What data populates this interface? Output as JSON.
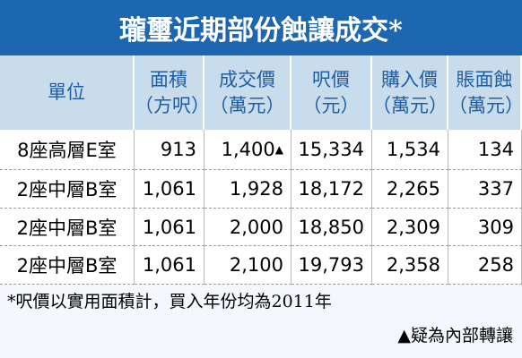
{
  "header": {
    "title": "瓏璽近期部份蝕讓成交*"
  },
  "table": {
    "columns": [
      [
        "單位"
      ],
      [
        "面積",
        "（方呎）"
      ],
      [
        "成交價",
        "（萬元）"
      ],
      [
        "呎價",
        "（元）"
      ],
      [
        "購入價",
        "（萬元）"
      ],
      [
        "賬面蝕",
        "（萬元）"
      ]
    ],
    "rows": [
      [
        "8座高層E室",
        "913",
        {
          "text": "1,400",
          "flag": "▲"
        },
        "15,334",
        "1,534",
        "134"
      ],
      [
        "2座中層B室",
        "1,061",
        "1,928",
        "18,172",
        "2,265",
        "337"
      ],
      [
        "2座中層B室",
        "1,061",
        "2,000",
        "18,850",
        "2,309",
        "309"
      ],
      [
        "2座中層B室",
        "1,061",
        "2,100",
        "19,793",
        "2,358",
        "258"
      ]
    ]
  },
  "footnotes": [
    "*呎價以實用面積計，買入年份均為2011年",
    "▲疑為內部轉讓"
  ]
}
